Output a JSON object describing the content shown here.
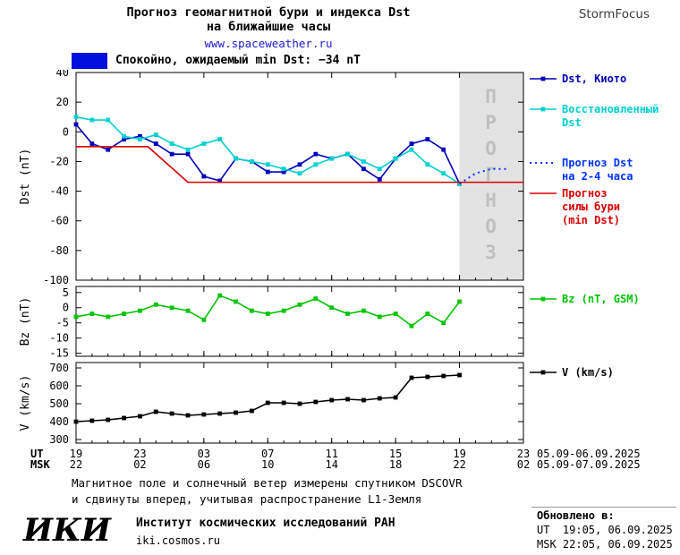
{
  "header": {
    "title_line1": "Прогноз геомагнитной бури и индекса Dst",
    "title_line2": "на ближайшие часы",
    "url": "www.spaceweather.ru",
    "brand": "StormFocus"
  },
  "status": {
    "label": "Спокойно, ожидаемый min Dst: −34 nT",
    "color": "#0011dd"
  },
  "chart_data": {
    "type": "line",
    "x_axis_rows": {
      "ut": "UT",
      "msk": "MSK"
    },
    "x_ticks": {
      "hours": [
        0,
        4,
        8,
        12,
        16,
        20,
        24,
        28
      ],
      "ut": [
        "19",
        "23",
        "03",
        "07",
        "11",
        "15",
        "19",
        "23"
      ],
      "msk": [
        "22",
        "02",
        "06",
        "10",
        "14",
        "18",
        "22",
        "02"
      ]
    },
    "dates": {
      "ut": "05.09-06.09.2025",
      "msk": "05.09-07.09.2025"
    },
    "forecast_region": {
      "x_start": 24,
      "x_end": 28,
      "label": "ПРОГНОЗ",
      "fill": "#e3e3e3",
      "text_color": "#bfbfbf"
    },
    "panels": [
      {
        "name": "dst",
        "ylabel": "Dst (nT)",
        "ylim": [
          -100,
          40
        ],
        "yticks": [
          40,
          20,
          0,
          -20,
          -40,
          -60,
          -80,
          -100
        ],
        "series": [
          {
            "id": "dst-kyoto",
            "name": "Dst, Киото",
            "legend_lines": [
              "Dst, Киото"
            ],
            "color": "#0000bb",
            "marker": true,
            "width": 1.6,
            "x": [
              0,
              1,
              2,
              3,
              4,
              5,
              6,
              7,
              8,
              9,
              10,
              11,
              12,
              13,
              14,
              15,
              16,
              17,
              18,
              19,
              20,
              21,
              22,
              23,
              24
            ],
            "values": [
              5,
              -8,
              -12,
              -5,
              -3,
              -8,
              -15,
              -15,
              -30,
              -33,
              -18,
              -20,
              -27,
              -27,
              -22,
              -15,
              -18,
              -15,
              -25,
              -32,
              -18,
              -8,
              -5,
              -12,
              -35
            ]
          },
          {
            "id": "dst-reconstructed",
            "name": "Восстановленный Dst",
            "legend_lines": [
              "Восстановленный",
              "Dst"
            ],
            "color": "#00d0d0",
            "marker": true,
            "width": 1.6,
            "x": [
              0,
              1,
              2,
              3,
              4,
              5,
              6,
              7,
              8,
              9,
              10,
              11,
              12,
              13,
              14,
              15,
              16,
              17,
              18,
              19,
              20,
              21,
              22,
              23,
              24
            ],
            "values": [
              10,
              8,
              8,
              -3,
              -5,
              -2,
              -8,
              -12,
              -8,
              -5,
              -18,
              -20,
              -22,
              -25,
              -28,
              -22,
              -18,
              -15,
              -20,
              -25,
              -18,
              -12,
              -22,
              -28,
              -35
            ]
          },
          {
            "id": "dst-forecast",
            "name": "Прогноз Dst на 2-4 часа",
            "legend_lines": [
              "Прогноз Dst",
              "на 2-4 часа"
            ],
            "color": "#0033ff",
            "dash": true,
            "width": 2,
            "x": [
              24,
              25,
              26,
              27
            ],
            "values": [
              -35,
              -28,
              -25,
              -25
            ]
          },
          {
            "id": "storm-strength-forecast",
            "name": "Прогноз силы бури (min Dst)",
            "legend_lines": [
              "Прогноз",
              "силы бури",
              "(min Dst)"
            ],
            "color": "#d80000",
            "width": 1.6,
            "x": [
              0,
              4.5,
              7,
              28
            ],
            "values": [
              -10,
              -10,
              -34,
              -34
            ]
          }
        ]
      },
      {
        "name": "bz",
        "ylabel": "Bz (nT)",
        "ylim": [
          -16,
          7
        ],
        "yticks": [
          5,
          0,
          -5,
          -10,
          -15
        ],
        "series": [
          {
            "id": "bz",
            "name": "Bz (nT, GSM)",
            "legend_lines": [
              "Bz (nT, GSM)"
            ],
            "color": "#00c400",
            "marker": true,
            "width": 1.6,
            "x": [
              0,
              1,
              2,
              3,
              4,
              5,
              6,
              7,
              8,
              9,
              10,
              11,
              12,
              13,
              14,
              15,
              16,
              17,
              18,
              19,
              20,
              21,
              22,
              23,
              24
            ],
            "values": [
              -3,
              -2,
              -3,
              -2,
              -1,
              1,
              0,
              -1,
              -4,
              4,
              2,
              -1,
              -2,
              -1,
              1,
              3,
              0,
              -2,
              -1,
              -3,
              -2,
              -6,
              -2,
              -5,
              2
            ]
          }
        ]
      },
      {
        "name": "v",
        "ylabel": "V (km/s)",
        "ylim": [
          280,
          730
        ],
        "yticks": [
          700,
          600,
          500,
          400,
          300
        ],
        "series": [
          {
            "id": "v",
            "name": "V (km/s)",
            "legend_lines": [
              "V (km/s)"
            ],
            "color": "#000000",
            "marker": true,
            "width": 1.6,
            "x": [
              0,
              1,
              2,
              3,
              4,
              5,
              6,
              7,
              8,
              9,
              10,
              11,
              12,
              13,
              14,
              15,
              16,
              17,
              18,
              19,
              20,
              21,
              22,
              23,
              24
            ],
            "values": [
              400,
              405,
              410,
              420,
              430,
              455,
              445,
              435,
              440,
              445,
              450,
              460,
              505,
              505,
              500,
              510,
              520,
              525,
              520,
              530,
              535,
              645,
              650,
              655,
              660
            ]
          }
        ]
      }
    ]
  },
  "footnote": {
    "line1": "Магнитное поле и солнечный ветер измерены спутником DSCOVR",
    "line2": "и сдвинуты вперед, учитывая распространение L1-Земля"
  },
  "footer": {
    "logo": "ИКИ",
    "institute": "Институт космических исследований РАН",
    "site": "iki.cosmos.ru",
    "updated_label": "Обновлено в:",
    "updated_ut": "UT  19:05, 06.09.2025",
    "updated_msk": "MSK 22:05, 06.09.2025"
  }
}
